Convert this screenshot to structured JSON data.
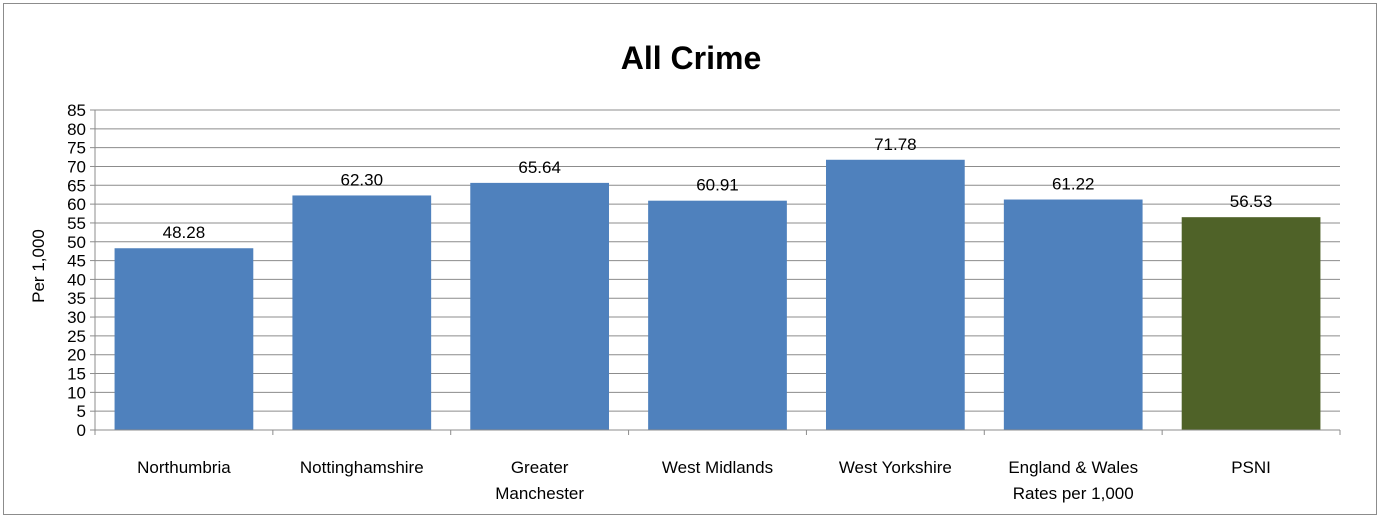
{
  "chart_data": {
    "type": "bar",
    "title": "All Crime",
    "ylabel": "Per 1,000",
    "xlabel": "",
    "categories": [
      [
        "Northumbria"
      ],
      [
        "Nottinghamshire"
      ],
      [
        "Greater",
        "Manchester"
      ],
      [
        "West Midlands"
      ],
      [
        "West Yorkshire"
      ],
      [
        "England & Wales",
        "Rates per 1,000"
      ],
      [
        "PSNI"
      ]
    ],
    "values": [
      48.28,
      62.3,
      65.64,
      60.91,
      71.78,
      61.22,
      56.53
    ],
    "value_labels": [
      "48.28",
      "62.30",
      "65.64",
      "60.91",
      "71.78",
      "61.22",
      "56.53"
    ],
    "bar_colors": [
      "#4f81bd",
      "#4f81bd",
      "#4f81bd",
      "#4f81bd",
      "#4f81bd",
      "#4f81bd",
      "#4f6228"
    ],
    "ylim": [
      0,
      85
    ],
    "ytick_step": 5,
    "grid": true,
    "legend": "none"
  }
}
